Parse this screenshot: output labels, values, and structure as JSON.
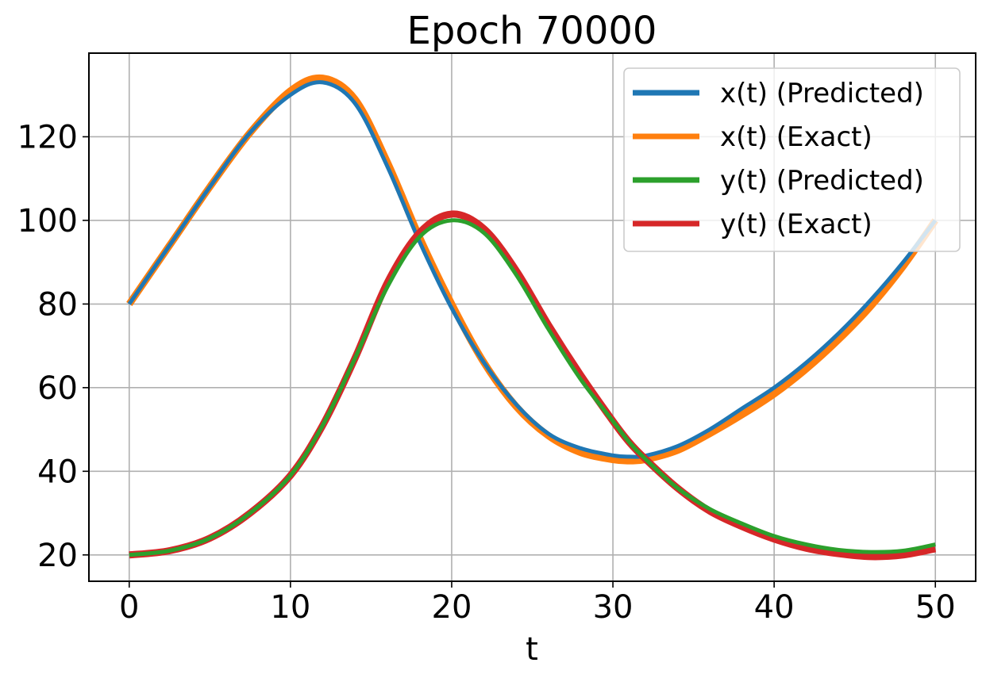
{
  "chart_data": {
    "type": "line",
    "title": "Epoch 70000",
    "xlabel": "t",
    "ylabel": "",
    "xlim": [
      -2.5,
      52.5
    ],
    "ylim": [
      13.7,
      140
    ],
    "xticks": [
      0,
      10,
      20,
      30,
      40,
      50
    ],
    "yticks": [
      20,
      40,
      60,
      80,
      100,
      120
    ],
    "xtick_labels": [
      "0",
      "10",
      "20",
      "30",
      "40",
      "50"
    ],
    "ytick_labels": [
      "20",
      "40",
      "60",
      "80",
      "100",
      "120"
    ],
    "grid": true,
    "legend_position": "top-right",
    "x": [
      0,
      2.5,
      5,
      7.5,
      10,
      12,
      14,
      16,
      18,
      20,
      22,
      24,
      26,
      28,
      30,
      31,
      32,
      34,
      36,
      38,
      40,
      42,
      44,
      46,
      48,
      50
    ],
    "series": [
      {
        "name": "x(t) (Predicted)",
        "color": "#1f77b4",
        "width": 5,
        "values": [
          80,
          94,
          108,
          121,
          130,
          133,
          128,
          113,
          95,
          79,
          66,
          56,
          49,
          45.5,
          43.8,
          43.5,
          43.7,
          46,
          50,
          55,
          60,
          66,
          73,
          81,
          90,
          100
        ]
      },
      {
        "name": "x(t) (Exact)",
        "color": "#ff7f0e",
        "width": 9,
        "values": [
          80,
          94,
          108,
          121,
          131,
          134,
          129,
          114,
          96,
          80,
          66,
          55.5,
          48.5,
          44.5,
          42.8,
          42.5,
          42.8,
          45,
          49,
          53.5,
          58.5,
          64.5,
          71.5,
          79.5,
          89,
          100
        ]
      },
      {
        "name": "y(t) (Predicted)",
        "color": "#2ca02c",
        "width": 5,
        "values": [
          20,
          21,
          24,
          30,
          39,
          51,
          67,
          84,
          96,
          100,
          97,
          87,
          74,
          62,
          52,
          47,
          43,
          36,
          31,
          27.5,
          24.5,
          22.5,
          21.2,
          20.7,
          21,
          22.5
        ]
      },
      {
        "name": "y(t) (Exact)",
        "color": "#d62728",
        "width": 9,
        "values": [
          20,
          21,
          24,
          30,
          39,
          51,
          67,
          85,
          97,
          101.5,
          98,
          88,
          75,
          63,
          52,
          47,
          43,
          36,
          30.5,
          26.8,
          23.8,
          21.6,
          20.3,
          19.6,
          20,
          21.5
        ]
      }
    ]
  }
}
